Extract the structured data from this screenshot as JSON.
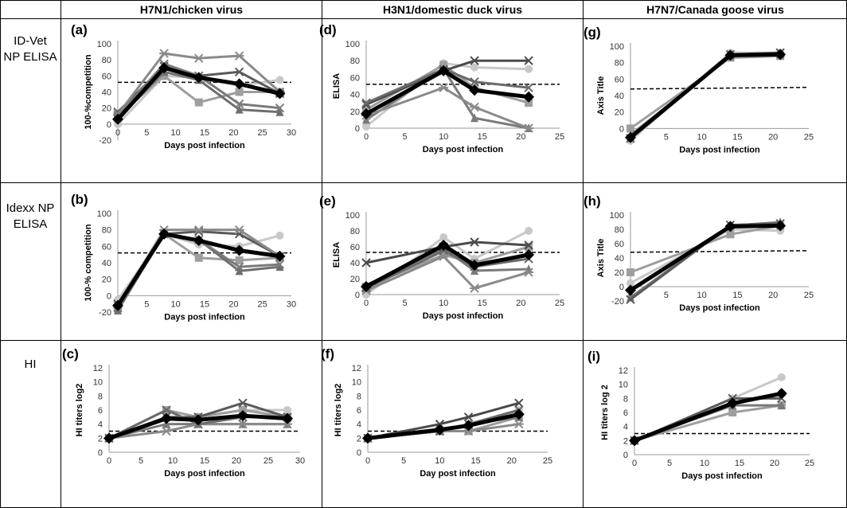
{
  "column_headers": [
    "H7N1/chicken virus",
    "H3N1/domestic duck virus",
    "H7N7/Canada goose virus"
  ],
  "row_labels": [
    "ID-Vet\nNP ELISA",
    "Idexx NP\nELISA",
    "HI"
  ],
  "chart_data": [
    {
      "panel": "(a)",
      "type": "line",
      "xlabel": "Days post infection",
      "ylabel": "100-%competition",
      "xlim": [
        0,
        30
      ],
      "ylim": [
        -20,
        100
      ],
      "xticks": [
        0,
        5,
        10,
        15,
        20,
        25,
        30
      ],
      "yticks": [
        -20,
        0,
        20,
        40,
        60,
        80,
        100
      ],
      "threshold": 52,
      "series": [
        {
          "marker": "circle",
          "color": "#c8c8c8",
          "x": [
            0,
            8,
            14,
            21,
            28
          ],
          "y": [
            0,
            60,
            58,
            48,
            55
          ]
        },
        {
          "marker": "square",
          "color": "#9e9e9e",
          "x": [
            0,
            8,
            14,
            21,
            28
          ],
          "y": [
            10,
            60,
            27,
            40,
            40
          ]
        },
        {
          "marker": "triangle",
          "color": "#6e6e6e",
          "x": [
            0,
            8,
            14,
            21,
            28
          ],
          "y": [
            8,
            65,
            55,
            18,
            15
          ]
        },
        {
          "marker": "x",
          "color": "#5a5a5a",
          "x": [
            0,
            8,
            14,
            21,
            28
          ],
          "y": [
            15,
            72,
            60,
            65,
            38
          ]
        },
        {
          "marker": "asterisk",
          "color": "#8a8a8a",
          "x": [
            0,
            8,
            14,
            21,
            28
          ],
          "y": [
            12,
            88,
            82,
            85,
            40
          ]
        },
        {
          "marker": "x",
          "color": "#7a7a7a",
          "x": [
            0,
            8,
            14,
            21,
            28
          ],
          "y": [
            10,
            75,
            60,
            25,
            20
          ]
        },
        {
          "marker": "diamond",
          "color": "#000000",
          "mean": true,
          "x": [
            0,
            8,
            14,
            21,
            28
          ],
          "y": [
            6,
            70,
            58,
            50,
            38
          ]
        }
      ]
    },
    {
      "panel": "(d)",
      "type": "line",
      "xlabel": "Days post infection",
      "ylabel": "ELISA",
      "xlim": [
        0,
        25
      ],
      "ylim": [
        0,
        100
      ],
      "xticks": [
        0,
        5,
        10,
        15,
        20,
        25
      ],
      "yticks": [
        0,
        20,
        40,
        60,
        80,
        100
      ],
      "threshold": 52,
      "series": [
        {
          "marker": "circle",
          "color": "#c8c8c8",
          "x": [
            0,
            10,
            14,
            21
          ],
          "y": [
            2,
            77,
            72,
            70
          ]
        },
        {
          "marker": "square",
          "color": "#9e9e9e",
          "x": [
            0,
            10,
            14,
            21
          ],
          "y": [
            22,
            75,
            48,
            30
          ]
        },
        {
          "marker": "triangle",
          "color": "#7a7a7a",
          "x": [
            0,
            10,
            14,
            21
          ],
          "y": [
            10,
            70,
            12,
            0
          ]
        },
        {
          "marker": "x",
          "color": "#4a4a4a",
          "x": [
            0,
            10,
            14,
            21
          ],
          "y": [
            28,
            68,
            80,
            80
          ]
        },
        {
          "marker": "asterisk",
          "color": "#8a8a8a",
          "x": [
            0,
            10,
            14,
            21
          ],
          "y": [
            15,
            48,
            25,
            0
          ]
        },
        {
          "marker": "x",
          "color": "#6a6a6a",
          "x": [
            0,
            10,
            14,
            21
          ],
          "y": [
            30,
            70,
            55,
            48
          ]
        },
        {
          "marker": "diamond",
          "color": "#000000",
          "mean": true,
          "x": [
            0,
            10,
            14,
            21
          ],
          "y": [
            17,
            68,
            45,
            37
          ]
        }
      ]
    },
    {
      "panel": "(g)",
      "type": "line",
      "xlabel": "Days post infection",
      "ylabel": "Axis Title",
      "xlim": [
        0,
        25
      ],
      "ylim": [
        -20,
        100
      ],
      "xticks": [
        0,
        5,
        10,
        15,
        20,
        25
      ],
      "yticks": [
        0,
        20,
        40,
        60,
        80,
        100
      ],
      "threshold": 48,
      "series": [
        {
          "marker": "circle",
          "color": "#c8c8c8",
          "x": [
            0,
            14,
            21
          ],
          "y": [
            -15,
            92,
            92
          ]
        },
        {
          "marker": "square",
          "color": "#9e9e9e",
          "x": [
            0,
            14,
            21
          ],
          "y": [
            0,
            86,
            88
          ]
        },
        {
          "marker": "triangle",
          "color": "#7a7a7a",
          "x": [
            0,
            14,
            21
          ],
          "y": [
            -8,
            88,
            90
          ]
        },
        {
          "marker": "x",
          "color": "#5a5a5a",
          "x": [
            0,
            14,
            21
          ],
          "y": [
            -12,
            90,
            92
          ]
        },
        {
          "marker": "diamond",
          "color": "#000000",
          "mean": true,
          "x": [
            0,
            14,
            21
          ],
          "y": [
            -11,
            89,
            90
          ]
        }
      ]
    },
    {
      "panel": "(b)",
      "type": "line",
      "xlabel": "Days post infection",
      "ylabel": "100-% competition",
      "xlim": [
        0,
        30
      ],
      "ylim": [
        -20,
        100
      ],
      "xticks": [
        0,
        5,
        10,
        15,
        20,
        25,
        30
      ],
      "yticks": [
        -20,
        0,
        20,
        40,
        60,
        80,
        100
      ],
      "threshold": 52,
      "series": [
        {
          "marker": "circle",
          "color": "#c8c8c8",
          "x": [
            0,
            8,
            14,
            21,
            28
          ],
          "y": [
            -5,
            75,
            62,
            60,
            73
          ]
        },
        {
          "marker": "square",
          "color": "#9e9e9e",
          "x": [
            0,
            8,
            14,
            21,
            28
          ],
          "y": [
            -15,
            75,
            46,
            43,
            46
          ]
        },
        {
          "marker": "triangle",
          "color": "#6e6e6e",
          "x": [
            0,
            8,
            14,
            21,
            28
          ],
          "y": [
            -18,
            75,
            68,
            30,
            35
          ]
        },
        {
          "marker": "x",
          "color": "#5a5a5a",
          "x": [
            0,
            8,
            14,
            21,
            28
          ],
          "y": [
            -10,
            75,
            78,
            75,
            48
          ]
        },
        {
          "marker": "asterisk",
          "color": "#8a8a8a",
          "x": [
            0,
            8,
            14,
            21,
            28
          ],
          "y": [
            -12,
            80,
            80,
            80,
            48
          ]
        },
        {
          "marker": "x",
          "color": "#7a7a7a",
          "x": [
            0,
            8,
            14,
            21,
            28
          ],
          "y": [
            -15,
            75,
            68,
            35,
            38
          ]
        },
        {
          "marker": "diamond",
          "color": "#000000",
          "mean": true,
          "x": [
            0,
            8,
            14,
            21,
            28
          ],
          "y": [
            -12,
            75,
            67,
            55,
            48
          ]
        }
      ]
    },
    {
      "panel": "(e)",
      "type": "line",
      "xlabel": "Days post infection",
      "ylabel": "ELISA",
      "xlim": [
        0,
        25
      ],
      "ylim": [
        0,
        100
      ],
      "xticks": [
        0,
        5,
        10,
        15,
        20,
        25
      ],
      "yticks": [
        0,
        20,
        40,
        60,
        80,
        100
      ],
      "threshold": 53,
      "series": [
        {
          "marker": "circle",
          "color": "#c8c8c8",
          "x": [
            0,
            10,
            14,
            21
          ],
          "y": [
            0,
            72,
            45,
            80
          ]
        },
        {
          "marker": "square",
          "color": "#9e9e9e",
          "x": [
            0,
            10,
            14,
            21
          ],
          "y": [
            10,
            50,
            40,
            60
          ]
        },
        {
          "marker": "triangle",
          "color": "#7a7a7a",
          "x": [
            0,
            10,
            14,
            21
          ],
          "y": [
            12,
            58,
            30,
            32
          ]
        },
        {
          "marker": "x",
          "color": "#4a4a4a",
          "x": [
            0,
            10,
            14,
            21
          ],
          "y": [
            40,
            60,
            66,
            62
          ]
        },
        {
          "marker": "asterisk",
          "color": "#8a8a8a",
          "x": [
            0,
            10,
            14,
            21
          ],
          "y": [
            5,
            48,
            8,
            28
          ]
        },
        {
          "marker": "x",
          "color": "#6a6a6a",
          "x": [
            0,
            10,
            14,
            21
          ],
          "y": [
            8,
            55,
            35,
            45
          ]
        },
        {
          "marker": "diamond",
          "color": "#000000",
          "mean": true,
          "x": [
            0,
            10,
            14,
            21
          ],
          "y": [
            10,
            62,
            37,
            50
          ]
        }
      ]
    },
    {
      "panel": "(h)",
      "type": "line",
      "xlabel": "Days post infection",
      "ylabel": "Axis Title",
      "xlim": [
        0,
        25
      ],
      "ylim": [
        -20,
        100
      ],
      "xticks": [
        0,
        5,
        10,
        15,
        20,
        25
      ],
      "yticks": [
        -20,
        0,
        20,
        40,
        60,
        80,
        100
      ],
      "threshold": 48,
      "series": [
        {
          "marker": "circle",
          "color": "#c8c8c8",
          "x": [
            0,
            14,
            21
          ],
          "y": [
            5,
            80,
            78
          ]
        },
        {
          "marker": "square",
          "color": "#9e9e9e",
          "x": [
            0,
            14,
            21
          ],
          "y": [
            20,
            73,
            85
          ]
        },
        {
          "marker": "triangle",
          "color": "#7a7a7a",
          "x": [
            0,
            14,
            21
          ],
          "y": [
            -15,
            85,
            90
          ]
        },
        {
          "marker": "x",
          "color": "#5a5a5a",
          "x": [
            0,
            14,
            21
          ],
          "y": [
            -18,
            86,
            88
          ]
        },
        {
          "marker": "diamond",
          "color": "#000000",
          "mean": true,
          "x": [
            0,
            14,
            21
          ],
          "y": [
            -5,
            84,
            85
          ]
        }
      ]
    },
    {
      "panel": "(c)",
      "type": "line",
      "xlabel": "Days post infection",
      "ylabel": "HI titers log2",
      "xlim": [
        0,
        30
      ],
      "ylim": [
        0,
        12
      ],
      "xticks": [
        0,
        5,
        10,
        15,
        20,
        25,
        30
      ],
      "yticks": [
        0,
        2,
        4,
        6,
        8,
        10,
        12
      ],
      "threshold": 3,
      "series": [
        {
          "marker": "circle",
          "color": "#c8c8c8",
          "x": [
            0,
            9,
            14,
            21,
            28
          ],
          "y": [
            2,
            5,
            5,
            6,
            6
          ]
        },
        {
          "marker": "square",
          "color": "#9e9e9e",
          "x": [
            0,
            9,
            14,
            21,
            28
          ],
          "y": [
            2,
            6,
            5,
            6,
            5
          ]
        },
        {
          "marker": "triangle",
          "color": "#7a7a7a",
          "x": [
            0,
            9,
            14,
            21,
            28
          ],
          "y": [
            2,
            4,
            4,
            4,
            4
          ]
        },
        {
          "marker": "x",
          "color": "#5a5a5a",
          "x": [
            0,
            9,
            14,
            21,
            28
          ],
          "y": [
            2,
            5,
            5,
            7,
            5
          ]
        },
        {
          "marker": "asterisk",
          "color": "#8a8a8a",
          "x": [
            0,
            9,
            14,
            21,
            28
          ],
          "y": [
            2,
            3,
            4,
            4,
            4
          ]
        },
        {
          "marker": "x",
          "color": "#6a6a6a",
          "x": [
            0,
            9,
            14,
            21,
            28
          ],
          "y": [
            2,
            6,
            4,
            5,
            5
          ]
        },
        {
          "marker": "diamond",
          "color": "#000000",
          "mean": true,
          "x": [
            0,
            9,
            14,
            21,
            28
          ],
          "y": [
            2,
            4.8,
            4.6,
            5.2,
            4.8
          ]
        }
      ]
    },
    {
      "panel": "(f)",
      "type": "line",
      "xlabel": "Day post infection",
      "ylabel": "HI titers log2",
      "xlim": [
        0,
        25
      ],
      "ylim": [
        0,
        12
      ],
      "xticks": [
        0,
        5,
        10,
        15,
        20,
        25
      ],
      "yticks": [
        0,
        2,
        4,
        6,
        8,
        10,
        12
      ],
      "threshold": 3,
      "series": [
        {
          "marker": "circle",
          "color": "#c8c8c8",
          "x": [
            0,
            10,
            14,
            21
          ],
          "y": [
            2,
            3,
            4,
            6
          ]
        },
        {
          "marker": "square",
          "color": "#9e9e9e",
          "x": [
            0,
            10,
            14,
            21
          ],
          "y": [
            2,
            3,
            3,
            5
          ]
        },
        {
          "marker": "triangle",
          "color": "#7a7a7a",
          "x": [
            0,
            10,
            14,
            21
          ],
          "y": [
            2,
            3,
            4,
            5
          ]
        },
        {
          "marker": "x",
          "color": "#4a4a4a",
          "x": [
            0,
            10,
            14,
            21
          ],
          "y": [
            2,
            4,
            5,
            7
          ]
        },
        {
          "marker": "asterisk",
          "color": "#8a8a8a",
          "x": [
            0,
            10,
            14,
            21
          ],
          "y": [
            2,
            3,
            3,
            4
          ]
        },
        {
          "marker": "x",
          "color": "#6a6a6a",
          "x": [
            0,
            10,
            14,
            21
          ],
          "y": [
            2,
            3,
            4,
            6
          ]
        },
        {
          "marker": "diamond",
          "color": "#000000",
          "mean": true,
          "x": [
            0,
            10,
            14,
            21
          ],
          "y": [
            2,
            3.2,
            3.8,
            5.4
          ]
        }
      ]
    },
    {
      "panel": "(i)",
      "type": "line",
      "xlabel": "Days post infection",
      "ylabel": "HI titers log 2",
      "xlim": [
        0,
        25
      ],
      "ylim": [
        0,
        12
      ],
      "xticks": [
        0,
        5,
        10,
        15,
        20,
        25
      ],
      "yticks": [
        0,
        2,
        4,
        6,
        8,
        10,
        12
      ],
      "threshold": 3,
      "series": [
        {
          "marker": "circle",
          "color": "#c8c8c8",
          "x": [
            0,
            14,
            21
          ],
          "y": [
            2,
            8,
            11
          ]
        },
        {
          "marker": "square",
          "color": "#9e9e9e",
          "x": [
            0,
            14,
            21
          ],
          "y": [
            2,
            6,
            7
          ]
        },
        {
          "marker": "triangle",
          "color": "#7a7a7a",
          "x": [
            0,
            14,
            21
          ],
          "y": [
            2,
            7,
            7
          ]
        },
        {
          "marker": "x",
          "color": "#5a5a5a",
          "x": [
            0,
            14,
            21
          ],
          "y": [
            2,
            8,
            8
          ]
        },
        {
          "marker": "diamond",
          "color": "#000000",
          "mean": true,
          "x": [
            0,
            14,
            21
          ],
          "y": [
            2,
            7.3,
            8.7
          ]
        }
      ]
    }
  ]
}
